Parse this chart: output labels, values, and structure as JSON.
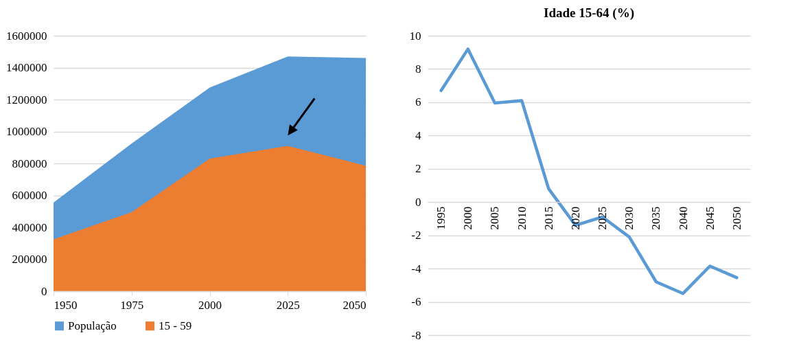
{
  "chart_data": [
    {
      "type": "area",
      "x": [
        1950,
        1975,
        2000,
        2025,
        2050
      ],
      "xlim": [
        1950,
        2050
      ],
      "xticks": [
        1950,
        1975,
        2000,
        2025,
        2050
      ],
      "ylim": [
        0,
        1600000
      ],
      "yticks": [
        0,
        200000,
        400000,
        600000,
        800000,
        1000000,
        1200000,
        1400000,
        1600000
      ],
      "series": [
        {
          "name": "População",
          "color": "#5b9bd5",
          "values": [
            555000,
            925000,
            1275000,
            1470000,
            1460000
          ]
        },
        {
          "name": "15 - 59",
          "color": "#ed7d31",
          "values": [
            325000,
            495000,
            830000,
            910000,
            785000
          ]
        }
      ],
      "grid": "y",
      "legend": "bottom"
    },
    {
      "type": "line",
      "title": "Idade 15-64 (%)",
      "categories": [
        "1995",
        "2000",
        "2005",
        "2010",
        "2015",
        "2020",
        "2025",
        "2030",
        "2035",
        "2040",
        "2045",
        "2050"
      ],
      "series": [
        {
          "color": "#5b9bd5",
          "values": [
            6.7,
            9.2,
            5.95,
            6.1,
            0.8,
            -1.4,
            -0.9,
            -2.1,
            -4.8,
            -5.5,
            -3.85,
            -4.55
          ]
        }
      ],
      "ylim": [
        -8,
        10
      ],
      "yticks": [
        -8,
        -6,
        -4,
        -2,
        0,
        2,
        4,
        6,
        8,
        10
      ],
      "grid": "y"
    }
  ]
}
